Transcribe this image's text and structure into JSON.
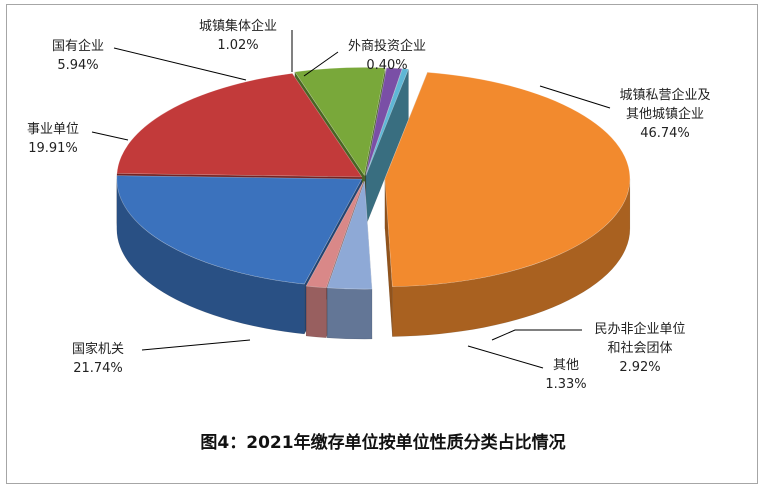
{
  "chart_data": {
    "type": "pie3d",
    "title": "图4：2021年缴存单位按单位性质分类占比情况",
    "categories": [
      "城镇私营企业及其他城镇企业",
      "民办非企业单位和社会团体",
      "其他",
      "国家机关",
      "事业单位",
      "国有企业",
      "城镇集体企业",
      "外商投资企业"
    ],
    "values": [
      46.74,
      2.92,
      1.33,
      21.74,
      19.91,
      5.94,
      1.02,
      0.4
    ],
    "value_labels": [
      "46.74%",
      "2.92%",
      "1.33%",
      "21.74%",
      "19.91%",
      "5.94%",
      "1.02%",
      "0.40%"
    ],
    "colors": [
      "#f28a2e",
      "#8ea9d6",
      "#d98888",
      "#3b72bd",
      "#c23a3a",
      "#79a83a",
      "#7a4fa6",
      "#5fb7d6"
    ]
  }
}
